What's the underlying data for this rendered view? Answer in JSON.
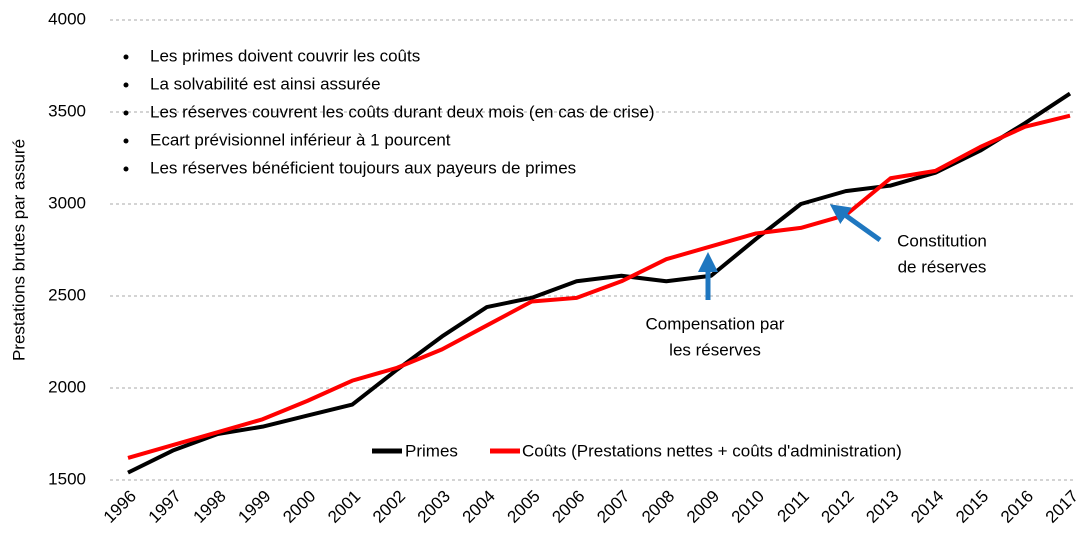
{
  "chart_data": {
    "type": "line",
    "y_label": "Prestations brutes par assuré",
    "categories": [
      "1996",
      "1997",
      "1998",
      "1999",
      "2000",
      "2001",
      "2002",
      "2003",
      "2004",
      "2005",
      "2006",
      "2007",
      "2008",
      "2009",
      "2010",
      "2011",
      "2012",
      "2013",
      "2014",
      "2015",
      "2016",
      "2017"
    ],
    "series": [
      {
        "name": "Primes",
        "color": "#000000",
        "values": [
          1540,
          1660,
          1750,
          1790,
          1850,
          1910,
          2100,
          2280,
          2440,
          2490,
          2580,
          2610,
          2580,
          2610,
          2810,
          3000,
          3070,
          3100,
          3170,
          3290,
          3440,
          3600
        ]
      },
      {
        "name": "Coûts (Prestations nettes + coûts d'administration)",
        "color": "#ff0000",
        "values": [
          1620,
          1690,
          1760,
          1830,
          1930,
          2040,
          2110,
          2210,
          2340,
          2470,
          2490,
          2580,
          2700,
          2770,
          2840,
          2870,
          2940,
          3140,
          3180,
          3310,
          3420,
          3480
        ]
      }
    ],
    "ylim": [
      1500,
      4000
    ],
    "yticks": [
      1500,
      2000,
      2500,
      3000,
      3500,
      4000
    ],
    "grid": true,
    "notes": [
      "Les primes doivent couvrir les coûts",
      "La solvabilité est ainsi assurée",
      "Les réserves couvrent les coûts durant deux mois (en cas de crise)",
      "Ecart prévisionnel inférieur à 1 pourcent",
      "Les réserves bénéficient toujours aux payeurs de primes"
    ],
    "annotations": [
      {
        "lines": [
          "Compensation par",
          "les réserves"
        ],
        "color": "#1f77c0"
      },
      {
        "lines": [
          "Constitution",
          "de réserves"
        ],
        "color": "#1f77c0"
      }
    ]
  }
}
